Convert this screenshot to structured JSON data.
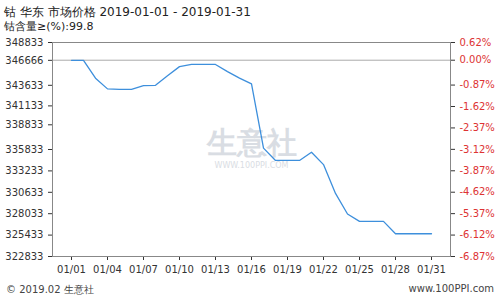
{
  "chart_data": {
    "type": "line",
    "title": "钴 华东 市场价格 2019-01-01 - 2019-01-31",
    "subtitle": "钴含量≥(%):99.8",
    "annotations": [
      "© 2019.02 生意社",
      "www.100PPI.com",
      "生意社",
      "WWW.100PPI.COM"
    ],
    "categories": [
      "01/01",
      null,
      null,
      "01/04",
      null,
      null,
      "01/07",
      null,
      null,
      "01/10",
      null,
      null,
      "01/13",
      null,
      null,
      "01/16",
      null,
      null,
      "01/19",
      null,
      null,
      "01/22",
      null,
      null,
      "01/25",
      null,
      null,
      "01/28",
      null,
      null,
      "01/31"
    ],
    "series": [
      {
        "name": "钴",
        "color": "#3d8fdc",
        "values": [
          346666,
          346666,
          344500,
          343200,
          343133,
          343133,
          343600,
          343633,
          344800,
          345900,
          346166,
          346166,
          346166,
          345300,
          344500,
          343800,
          336000,
          334500,
          334500,
          334500,
          335500,
          334000,
          330500,
          328000,
          327100,
          327100,
          327100,
          325600,
          325600,
          325600,
          325600
        ]
      }
    ],
    "ylim": [
      322833,
      348833
    ],
    "yticks": [
      348833,
      346666,
      343633,
      341133,
      338833,
      335833,
      333233,
      330633,
      328033,
      325433,
      322833
    ],
    "y2lim": [
      -6.87,
      0.62
    ],
    "y2ticks": [
      {
        "value": 0.62,
        "label": "0.62%"
      },
      {
        "value": 0,
        "label": "0.00%"
      },
      {
        "value": -0.87,
        "label": "-0.87%"
      },
      {
        "value": -1.62,
        "label": "-1.62%"
      },
      {
        "value": -2.37,
        "label": "-2.37%"
      },
      {
        "value": -3.12,
        "label": "-3.12%"
      },
      {
        "value": -3.87,
        "label": "-3.87%"
      },
      {
        "value": -4.62,
        "label": "-4.62%"
      },
      {
        "value": -5.37,
        "label": "-5.37%"
      },
      {
        "value": -6.12,
        "label": "-6.12%"
      },
      {
        "value": -6.87,
        "label": "-6.87%"
      }
    ],
    "grid": false
  }
}
